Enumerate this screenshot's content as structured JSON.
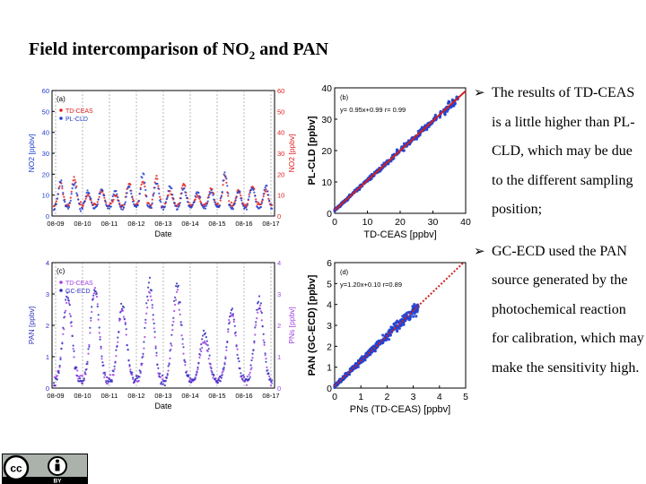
{
  "title": {
    "main": "Field intercomparison of NO",
    "sub": "2",
    "rest": " and PAN"
  },
  "bullets": [
    "The results of TD-CEAS is a little higher than PL-CLD, which may be due to the different sampling position;",
    "GC-ECD used the PAN source generated by the photochemical reaction for calibration, which may make the sensitivity high."
  ],
  "colors": {
    "td_ceas_red": "#e02020",
    "pl_cld_blue": "#2040d0",
    "pan_blue": "#3030c0",
    "pan_purple": "#a040e0",
    "fit_line": "#d02020"
  },
  "badge": {
    "icon": "cc-by-icon",
    "label": "BY"
  },
  "chart_data": [
    {
      "type": "line",
      "panel_label": "(a)",
      "xlabel": "Date",
      "ylabel": "NO2 [ppbv]",
      "ylabel_right": "NO2 [ppbv]",
      "ylim": [
        0,
        60
      ],
      "yticks": [
        "0",
        "10",
        "20",
        "30",
        "40",
        "50",
        "60"
      ],
      "categories": [
        "08-09",
        "08-10",
        "08-11",
        "08-12",
        "08-13",
        "08-14",
        "08-15",
        "08-16",
        "08-17"
      ],
      "legend": [
        "TD-CEAS",
        "PL-CLD"
      ],
      "legend_position": "top-left",
      "series": [
        {
          "name": "TD-CEAS",
          "color": "#e02020",
          "daily_peaks": [
            15,
            18,
            10,
            12,
            10,
            15,
            17,
            18,
            12,
            15,
            10,
            13,
            18,
            12,
            15,
            12
          ],
          "baseline": 5
        },
        {
          "name": "PL-CLD",
          "color": "#2040d0",
          "daily_peaks": [
            17,
            16,
            12,
            13,
            12,
            14,
            20,
            16,
            14,
            13,
            12,
            12,
            20,
            12,
            14,
            14
          ],
          "baseline": 4
        }
      ]
    },
    {
      "type": "scatter",
      "panel_label": "(b)",
      "annotation": "y= 0.95x+0.99  r= 0.99",
      "xlabel": "TD-CEAS [ppbv]",
      "ylabel": "PL-CLD [ppbv]",
      "xlim": [
        0,
        40
      ],
      "ylim": [
        0,
        40
      ],
      "xticks": [
        "0",
        "10",
        "20",
        "30",
        "40"
      ],
      "yticks": [
        "0",
        "10",
        "20",
        "30",
        "40"
      ],
      "fit": {
        "slope": 0.95,
        "intercept": 0.99
      },
      "color": "#2040d0",
      "range_max": 38
    },
    {
      "type": "line",
      "panel_label": "(c)",
      "xlabel": "Date",
      "ylabel": "PAN [ppbv]",
      "ylabel_right": "PNs [ppbv]",
      "ylim": [
        0,
        4
      ],
      "yticks": [
        "0",
        "1",
        "2",
        "3",
        "4"
      ],
      "categories": [
        "08-09",
        "08-10",
        "08-11",
        "08-12",
        "08-13",
        "08-14",
        "08-15",
        "08-16",
        "08-17"
      ],
      "legend": [
        "TD-CEAS",
        "GC-ECD"
      ],
      "legend_position": "top-left",
      "series": [
        {
          "name": "TD-CEAS",
          "color": "#a040e0",
          "daily_peaks": [
            2.8,
            3.1,
            2.5,
            3.0,
            3.0,
            1.5,
            2.4,
            2.6
          ],
          "baseline": 0.2
        },
        {
          "name": "GC-ECD",
          "color": "#3030c0",
          "daily_peaks": [
            3.0,
            3.2,
            2.6,
            3.4,
            3.3,
            1.8,
            2.5,
            2.8
          ],
          "baseline": 0.2
        }
      ]
    },
    {
      "type": "scatter",
      "panel_label": "(d)",
      "annotation": "y=1.20x+0.10  r=0.89",
      "xlabel": "PNs (TD-CEAS) [ppbv]",
      "ylabel": "PAN (GC-ECD) [ppbv]",
      "xlim": [
        0,
        5
      ],
      "ylim": [
        0,
        6
      ],
      "xticks": [
        "0",
        "1",
        "2",
        "3",
        "4",
        "5"
      ],
      "yticks": [
        "0",
        "1",
        "2",
        "3",
        "4",
        "5",
        "6"
      ],
      "fit": {
        "slope": 1.2,
        "intercept": 0.1
      },
      "color": "#2040d0",
      "range_max": 3.2
    }
  ]
}
